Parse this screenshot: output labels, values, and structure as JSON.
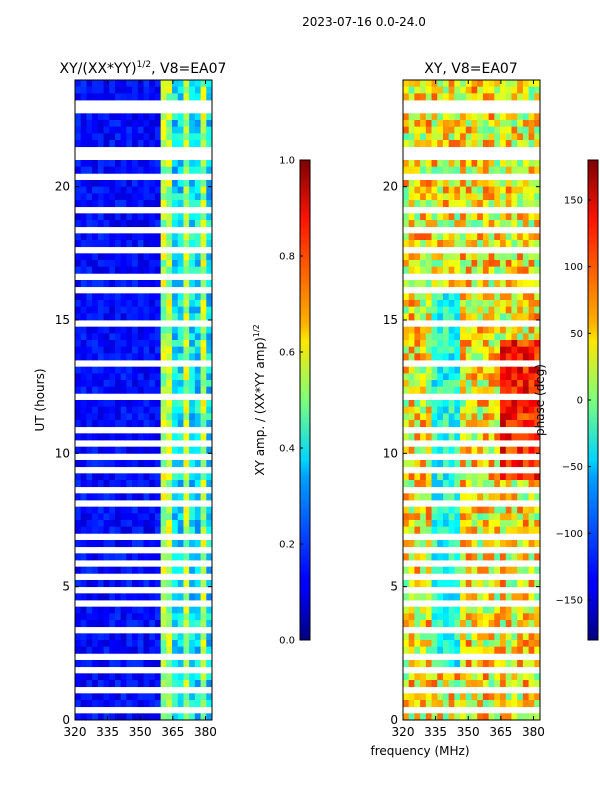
{
  "suptitle": "2023-07-16 0.0-24.0",
  "xlabel_shared": "frequency (MHz)",
  "chart_data": [
    {
      "type": "heatmap",
      "title": "XY/(XX*YY)^{1/2}, V8=EA07",
      "title_main": "XY/(XX*YY)",
      "title_exp": "1/2",
      "title_tail": ", V8=EA07",
      "xlabel": "frequency (MHz)",
      "ylabel": "UT (hours)",
      "xlim": [
        320,
        383
      ],
      "ylim": [
        0,
        24
      ],
      "xticks": [
        320,
        335,
        350,
        365,
        380
      ],
      "yticks": [
        0,
        5,
        10,
        15,
        20
      ],
      "colormap": "jet",
      "colorbar": {
        "label": "XY amp. / (XX*YY amp)^{1/2}",
        "label_main": "XY amp. / (XX*YY amp)",
        "label_exp": "1/2",
        "range": [
          0.0,
          1.0
        ],
        "ticks": [
          "0.0",
          "0.2",
          "0.4",
          "0.6",
          "0.8",
          "1.0"
        ],
        "tick_values": [
          0.0,
          0.2,
          0.4,
          0.6,
          0.8,
          1.0
        ]
      }
    },
    {
      "type": "heatmap",
      "title": "XY, V8=EA07",
      "xlabel": "frequency (MHz)",
      "ylabel": "",
      "xlim": [
        320,
        383
      ],
      "ylim": [
        0,
        24
      ],
      "xticks": [
        320,
        335,
        350,
        365,
        380
      ],
      "yticks": [
        0,
        5,
        10,
        15,
        20
      ],
      "colormap": "jet",
      "colorbar": {
        "label": "phase (deg)",
        "range": [
          -180,
          180
        ],
        "ticks": [
          "−150",
          "−100",
          "−50",
          "0",
          "50",
          "100",
          "150"
        ],
        "tick_values": [
          -150,
          -100,
          -50,
          0,
          50,
          100,
          150
        ]
      }
    }
  ]
}
